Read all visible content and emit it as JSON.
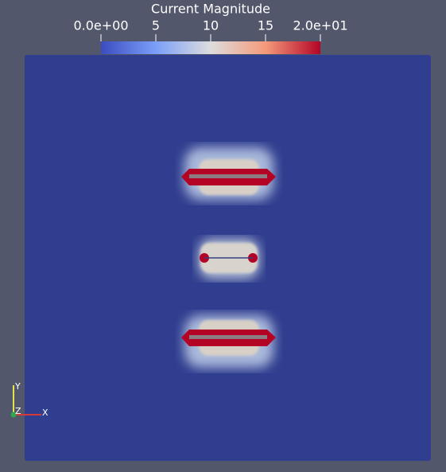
{
  "colorbar": {
    "title": "Current Magnitude",
    "range": [
      0,
      20
    ],
    "ticks": [
      {
        "value": 0,
        "label": "0.0e+00"
      },
      5,
      10,
      15,
      {
        "value": 20,
        "label": "2.0e+01"
      }
    ]
  },
  "axes": {
    "y": "Y",
    "z": "Z",
    "x": "X"
  }
}
